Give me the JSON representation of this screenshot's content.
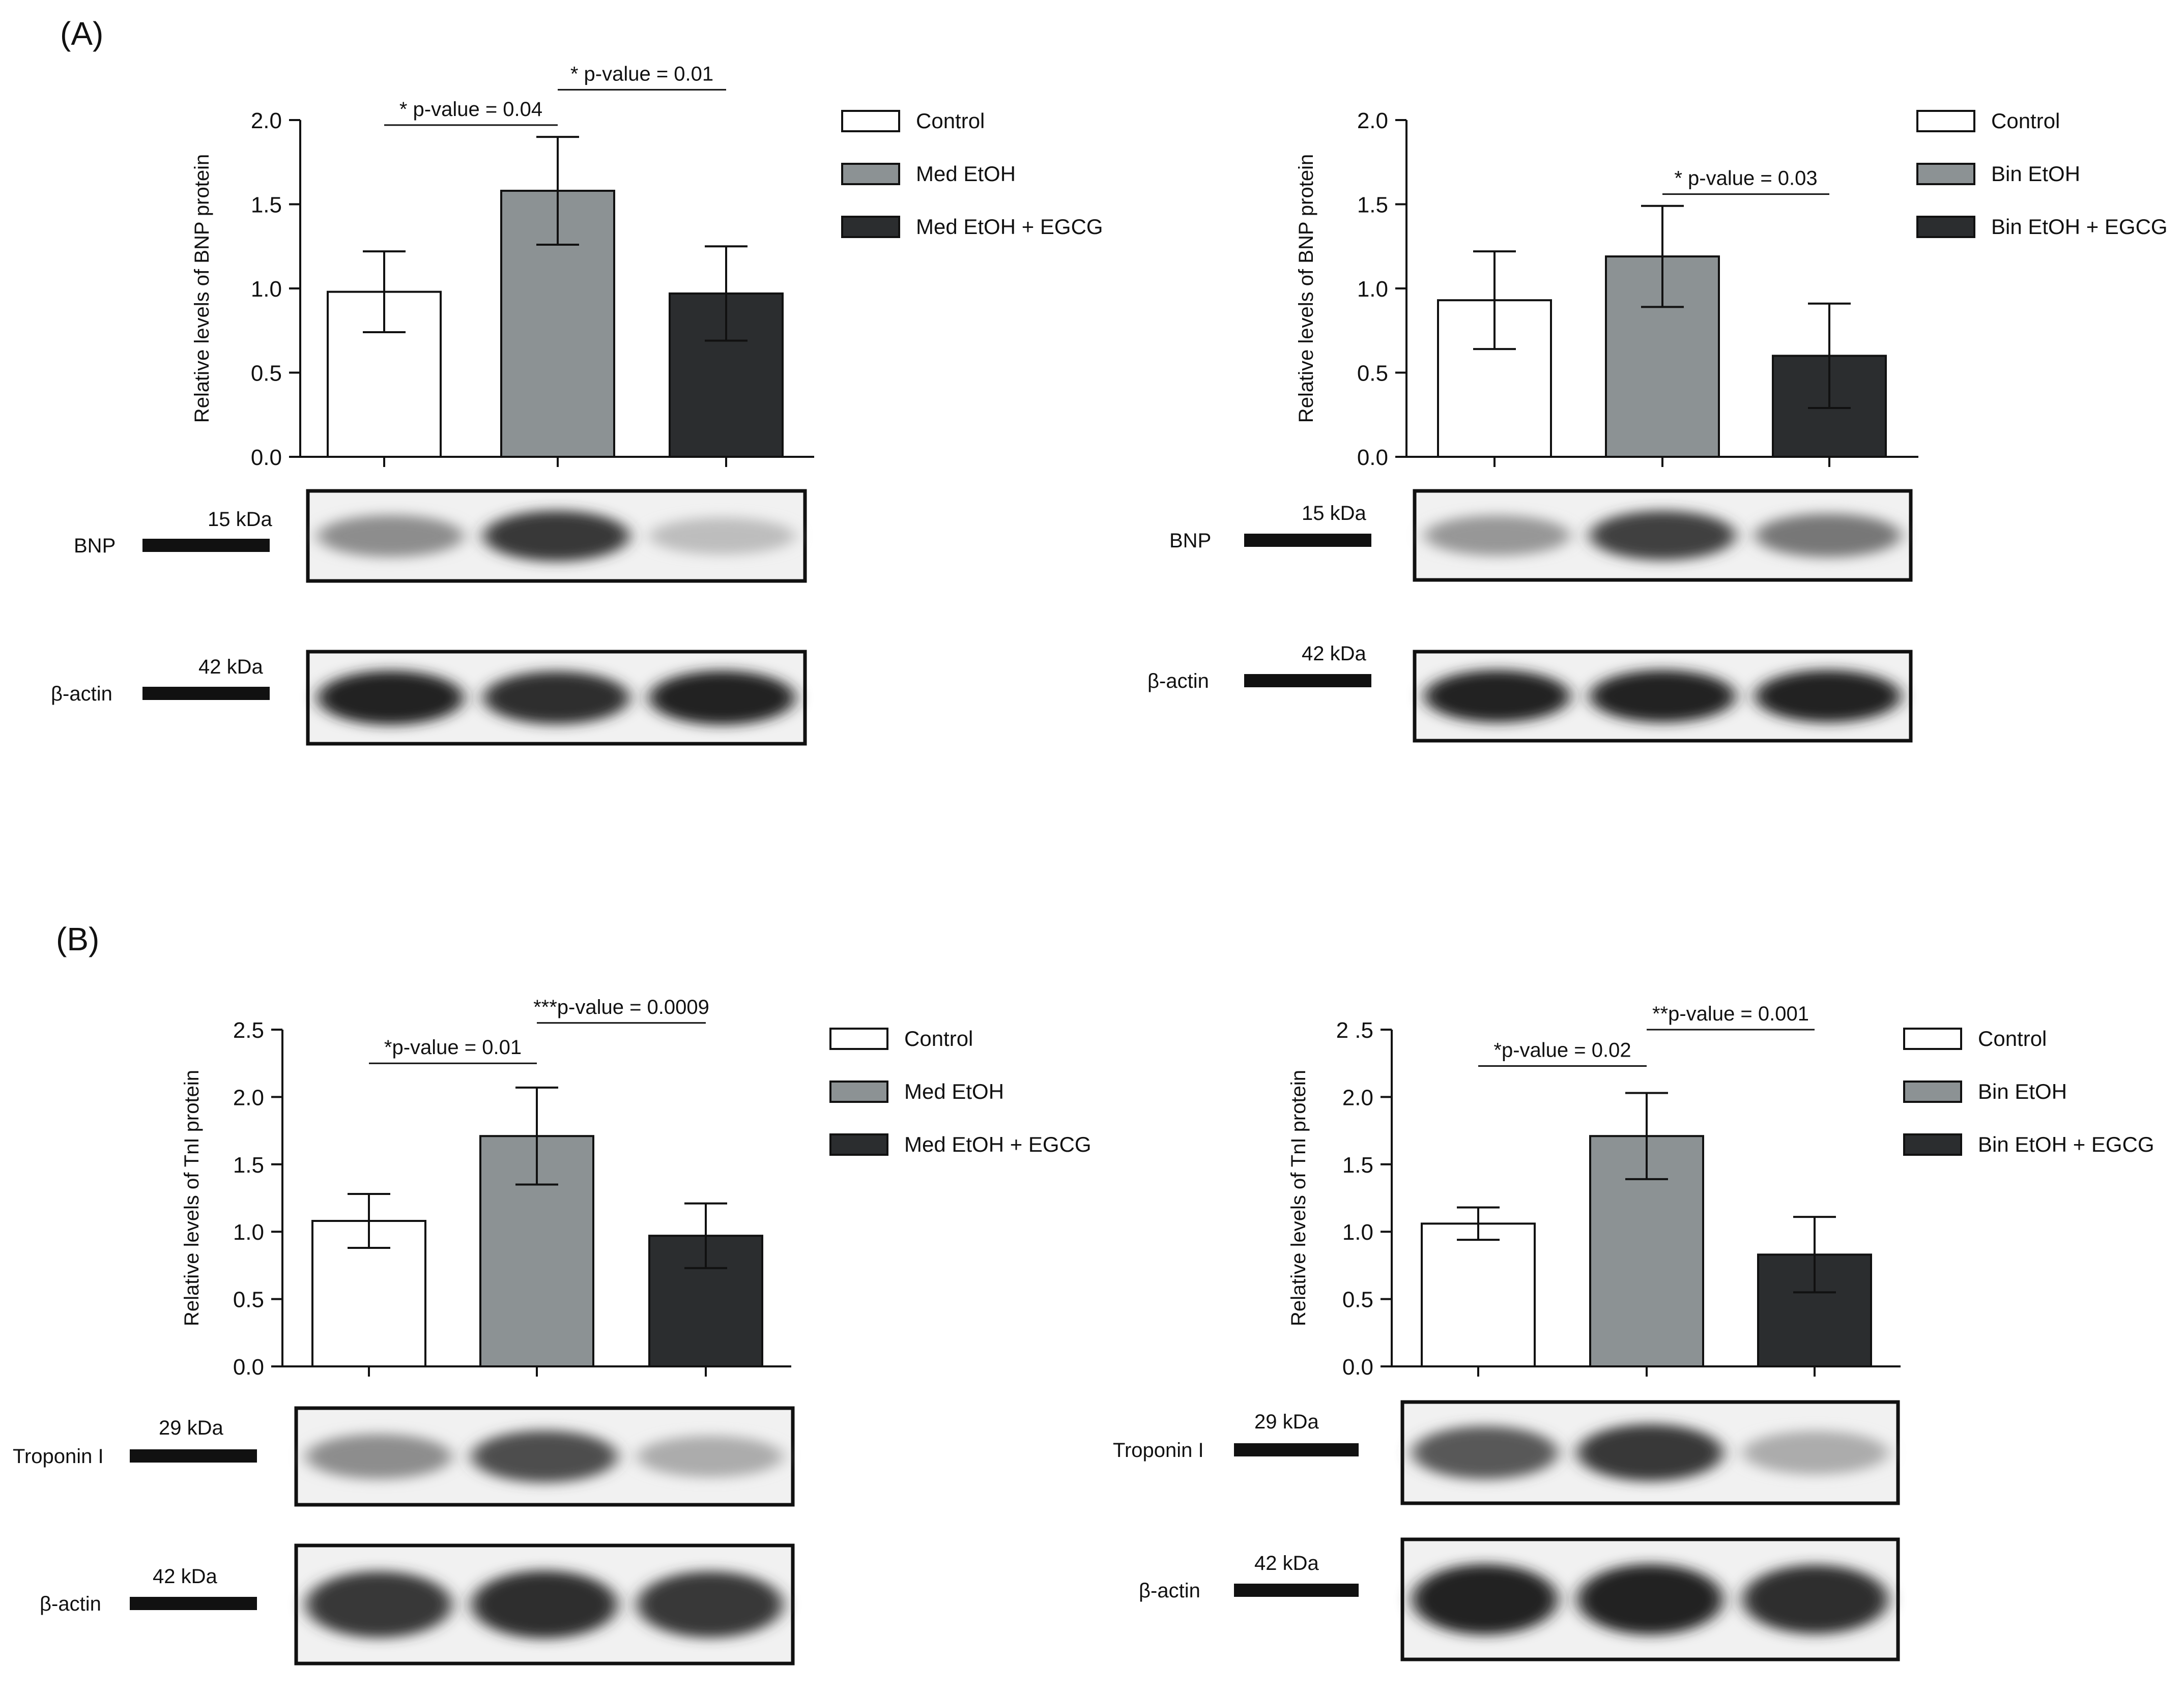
{
  "panels": [
    {
      "label": "(A)"
    },
    {
      "label": "(B)"
    }
  ],
  "colors": {
    "control": "#ffffff",
    "ethanol": "#8c9294",
    "egcg": "#2b2d2f",
    "axis": "#111111"
  },
  "chart_data": [
    {
      "type": "bar",
      "panel": "(A)",
      "ylabel": "Relative levels of BNP protein",
      "ylim": [
        0,
        2.0
      ],
      "yticks": [
        "0.0",
        "0.5",
        "1.0",
        "1.5",
        "2.0"
      ],
      "categories": [
        "Control",
        "Med EtOH",
        "Med EtOH + EGCG"
      ],
      "values": [
        0.98,
        1.58,
        0.97
      ],
      "errors": [
        0.24,
        0.32,
        0.28
      ],
      "legend": [
        "Control",
        "Med EtOH",
        "Med EtOH + EGCG"
      ],
      "legend_placement": "right",
      "significance": [
        {
          "from": 0,
          "to": 1,
          "label": "* p-value = 0.04",
          "y": 1.97
        },
        {
          "from": 1,
          "to": 2,
          "label": "* p-value = 0.01",
          "y": 2.18
        }
      ],
      "blots": [
        {
          "protein": "BNP",
          "size": "15 kDa",
          "intensities": [
            0.45,
            0.85,
            0.22
          ]
        },
        {
          "protein": "β-actin",
          "size": "42 kDa",
          "intensities": [
            0.95,
            0.9,
            0.95
          ]
        }
      ]
    },
    {
      "type": "bar",
      "panel": "(A)",
      "ylabel": "Relative levels of BNP protein",
      "ylim": [
        0,
        2.0
      ],
      "yticks": [
        "0.0",
        "0.5",
        "1.0",
        "1.5",
        "2.0"
      ],
      "categories": [
        "Control",
        "Bin EtOH",
        "Bin EtOH + EGCG"
      ],
      "values": [
        0.93,
        1.19,
        0.6
      ],
      "errors": [
        0.29,
        0.3,
        0.31
      ],
      "legend": [
        "Control",
        "Bin EtOH",
        "Bin EtOH + EGCG"
      ],
      "legend_placement": "right",
      "significance": [
        {
          "from": 1,
          "to": 2,
          "label": "* p-value = 0.03",
          "y": 1.56
        }
      ],
      "blots": [
        {
          "protein": "BNP",
          "size": "15 kDa",
          "intensities": [
            0.4,
            0.82,
            0.55
          ]
        },
        {
          "protein": "β-actin",
          "size": "42 kDa",
          "intensities": [
            0.95,
            0.95,
            0.95
          ]
        }
      ]
    },
    {
      "type": "bar",
      "panel": "(B)",
      "ylabel": "Relative levels of TnI protein",
      "ylim": [
        0,
        2.5
      ],
      "yticks": [
        "0.0",
        "0.5",
        "1.0",
        "1.5",
        "2.0",
        "2.5"
      ],
      "categories": [
        "Control",
        "Med EtOH",
        "Med EtOH + EGCG"
      ],
      "values": [
        1.08,
        1.71,
        0.97
      ],
      "errors": [
        0.2,
        0.36,
        0.24
      ],
      "legend": [
        "Control",
        "Med EtOH",
        "Med EtOH + EGCG"
      ],
      "legend_placement": "right",
      "significance": [
        {
          "from": 0,
          "to": 1,
          "label": "*p-value = 0.01",
          "y": 2.25
        },
        {
          "from": 1,
          "to": 2,
          "label": "***p-value = 0.0009",
          "y": 2.55
        }
      ],
      "blots": [
        {
          "protein": "Troponin I",
          "size": "29 kDa",
          "intensities": [
            0.45,
            0.75,
            0.3
          ]
        },
        {
          "protein": "β-actin",
          "size": "42 kDa",
          "intensities": [
            0.85,
            0.9,
            0.85
          ]
        }
      ]
    },
    {
      "type": "bar",
      "panel": "(B)",
      "ylabel": "Relative levels of TnI protein",
      "ylim": [
        0,
        2.5
      ],
      "yticks": [
        "0.0",
        "0.5",
        "1.0",
        "1.5",
        "2.0",
        "2 .5"
      ],
      "categories": [
        "Control",
        "Bin EtOH",
        "Bin EtOH + EGCG"
      ],
      "values": [
        1.06,
        1.71,
        0.83
      ],
      "errors": [
        0.12,
        0.32,
        0.28
      ],
      "legend": [
        "Control",
        "Bin EtOH",
        "Bin EtOH + EGCG"
      ],
      "legend_placement": "right",
      "significance": [
        {
          "from": 0,
          "to": 1,
          "label": "*p-value = 0.02",
          "y": 2.23
        },
        {
          "from": 1,
          "to": 2,
          "label": "**p-value = 0.001",
          "y": 2.5
        }
      ],
      "blots": [
        {
          "protein": "Troponin I",
          "size": "29 kDa",
          "intensities": [
            0.7,
            0.85,
            0.3
          ]
        },
        {
          "protein": "β-actin",
          "size": "42 kDa",
          "intensities": [
            0.95,
            0.95,
            0.9
          ]
        }
      ]
    }
  ]
}
